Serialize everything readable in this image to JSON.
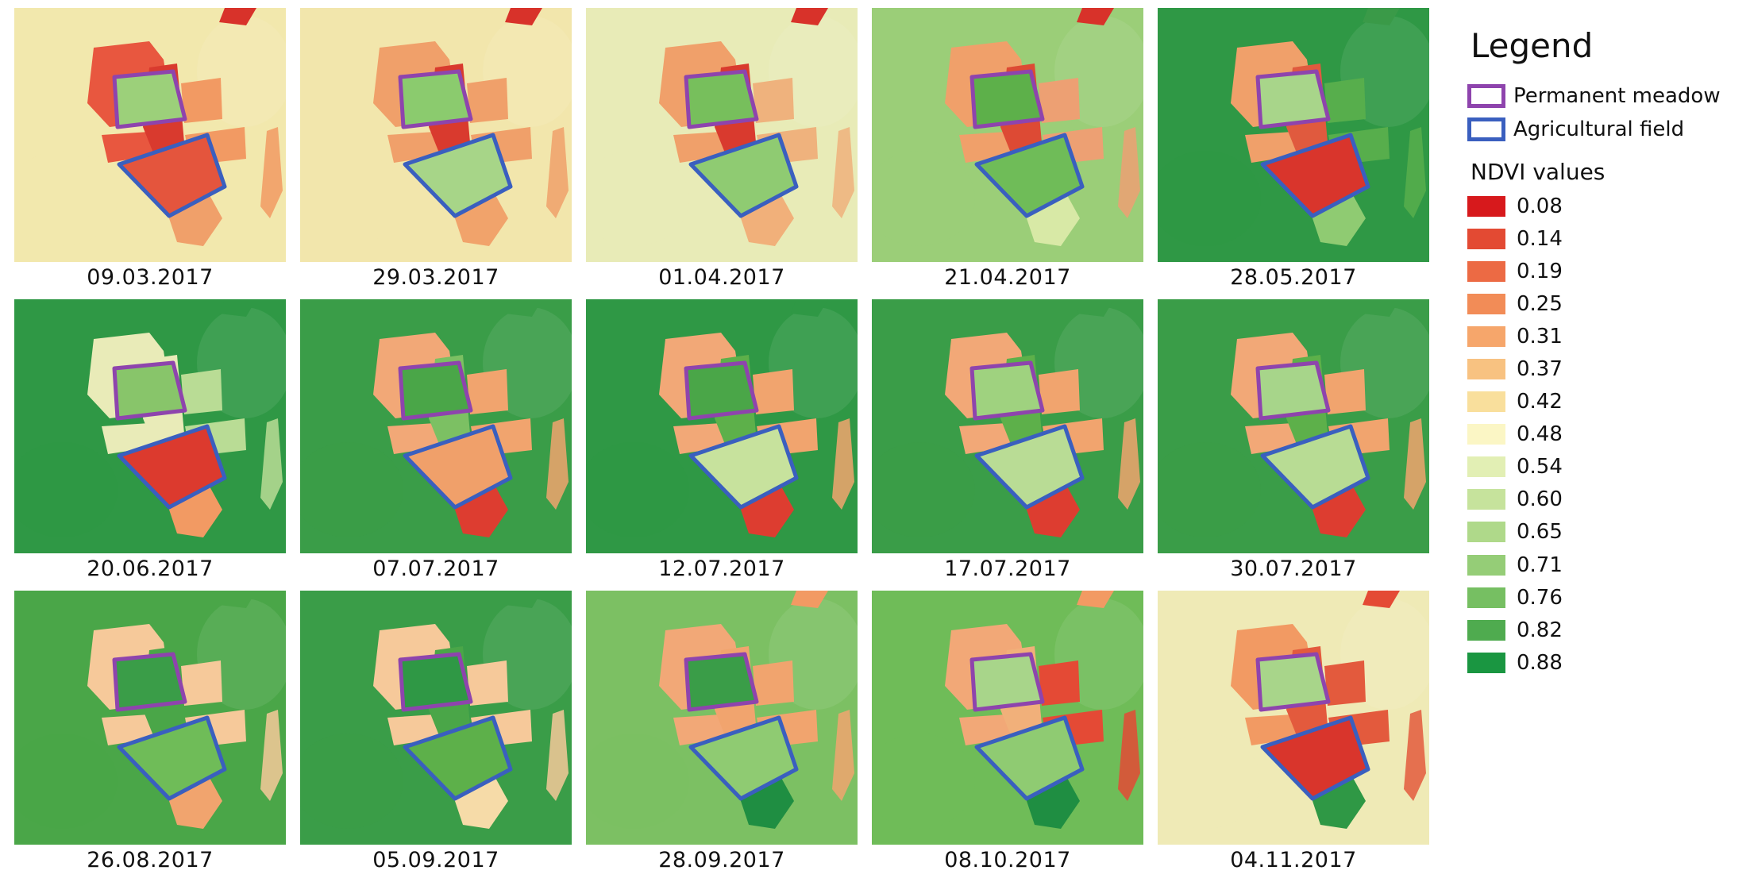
{
  "panels": [
    {
      "date": "09.03.2017",
      "bg": "#f2e8ad",
      "patches": [
        [
          "#f0cf8c"
        ],
        [
          "#f7ebb8"
        ]
      ],
      "meadow": "#9cd07a",
      "field": "#e4553d",
      "tail": "#f0a06a",
      "left": "#e8573f",
      "mid": "#d93a2e",
      "right": "#f29a63",
      "corner": "#d8322a"
    },
    {
      "date": "29.03.2017",
      "bg": "#f2e6ac",
      "meadow": "#8bcb6e",
      "field": "#a7d588",
      "tail": "#f1a36b",
      "left": "#f0a06a",
      "mid": "#d93a2e",
      "right": "#f0a06a",
      "corner": "#d8322a"
    },
    {
      "date": "01.04.2017",
      "bg": "#e8ebb7",
      "meadow": "#77bf5c",
      "field": "#8fcb72",
      "tail": "#f1b07a",
      "left": "#f0a06a",
      "mid": "#d93a2e",
      "right": "#efb27d",
      "corner": "#d8322a"
    },
    {
      "date": "21.04.2017",
      "bg": "#9bce78",
      "meadow": "#5db04a",
      "field": "#6fbc58",
      "tail": "#d8e9a6",
      "left": "#f0a06a",
      "mid": "#dd4a34",
      "right": "#eda073",
      "corner": "#d8322a"
    },
    {
      "date": "28.05.2017",
      "bg": "#2f9845",
      "meadow": "#a8d58a",
      "field": "#d9352c",
      "tail": "#8fcb72",
      "left": "#f0a06a",
      "mid": "#e05a3e",
      "right": "#57ae4c",
      "corner": "#3a9a48"
    },
    {
      "date": "20.06.2017",
      "bg": "#2f9845",
      "meadow": "#88c56a",
      "field": "#dc3a2e",
      "tail": "#f29a63",
      "left": "#e9ebb8",
      "mid": "#e9ebb8",
      "right": "#b9dc95",
      "corner": "#2f9845"
    },
    {
      "date": "07.07.2017",
      "bg": "#3a9d48",
      "meadow": "#4aa648",
      "field": "#f0a06a",
      "tail": "#dd3d30",
      "left": "#f2a877",
      "mid": "#7cc063",
      "right": "#f1a46e",
      "corner": "#3a9d48"
    },
    {
      "date": "12.07.2017",
      "bg": "#2f9845",
      "meadow": "#4aa648",
      "field": "#c7e29d",
      "tail": "#dd3d30",
      "left": "#f2a877",
      "mid": "#5db04a",
      "right": "#f1a46e",
      "corner": "#2f9845"
    },
    {
      "date": "17.07.2017",
      "bg": "#3a9d48",
      "meadow": "#9fd27f",
      "field": "#b9dc95",
      "tail": "#dd3d30",
      "left": "#f2a877",
      "mid": "#5db04a",
      "right": "#f1a46e",
      "corner": "#3a9d48"
    },
    {
      "date": "30.07.2017",
      "bg": "#3a9d48",
      "meadow": "#a7d58a",
      "field": "#b8dc94",
      "tail": "#dd3d30",
      "left": "#f2a877",
      "mid": "#5db04a",
      "right": "#f1a46e",
      "corner": "#3a9d48"
    },
    {
      "date": "26.08.2017",
      "bg": "#4aa648",
      "meadow": "#3a9d48",
      "field": "#6fbc58",
      "tail": "#f1a46e",
      "left": "#f6c99a",
      "mid": "#4aa648",
      "right": "#f6c99a",
      "corner": "#4aa648"
    },
    {
      "date": "05.09.2017",
      "bg": "#3a9d48",
      "meadow": "#2f9845",
      "field": "#5db04a",
      "tail": "#f6dba8",
      "left": "#f6c99a",
      "mid": "#4aa648",
      "right": "#f6c99a",
      "corner": "#3a9d48"
    },
    {
      "date": "28.09.2017",
      "bg": "#7cc063",
      "meadow": "#3a9d48",
      "field": "#8fcb72",
      "tail": "#1f8e42",
      "left": "#f2a877",
      "mid": "#f1a46e",
      "right": "#f1a46e",
      "corner": "#f29a63"
    },
    {
      "date": "08.10.2017",
      "bg": "#6fbc58",
      "meadow": "#a8d58a",
      "field": "#8fcb72",
      "tail": "#1f8e42",
      "left": "#f2a877",
      "mid": "#f1b07a",
      "right": "#e44a35",
      "corner": "#f29a63"
    },
    {
      "date": "04.11.2017",
      "bg": "#efeab6",
      "meadow": "#a8d58a",
      "field": "#d9352c",
      "tail": "#2f9845",
      "left": "#f29a63",
      "mid": "#e35a3d",
      "right": "#e35a3d",
      "corner": "#e44a35"
    }
  ],
  "legend": {
    "title": "Legend",
    "polygons": [
      {
        "label": "Permanent meadow",
        "color": "#8e44ad"
      },
      {
        "label": "Agricultural field",
        "color": "#3a5fbf"
      }
    ],
    "ndvi_title": "NDVI  values",
    "ndvi": [
      {
        "value": "0.08",
        "color": "#d7191c"
      },
      {
        "value": "0.14",
        "color": "#e34a33"
      },
      {
        "value": "0.19",
        "color": "#ec6a44"
      },
      {
        "value": "0.25",
        "color": "#f28c57"
      },
      {
        "value": "0.31",
        "color": "#f6a66b"
      },
      {
        "value": "0.37",
        "color": "#f8c281"
      },
      {
        "value": "0.42",
        "color": "#f9df9c"
      },
      {
        "value": "0.48",
        "color": "#fbf6c5"
      },
      {
        "value": "0.54",
        "color": "#e2efb4"
      },
      {
        "value": "0.60",
        "color": "#c6e39c"
      },
      {
        "value": "0.65",
        "color": "#afd98a"
      },
      {
        "value": "0.71",
        "color": "#95cd77"
      },
      {
        "value": "0.76",
        "color": "#76bf62"
      },
      {
        "value": "0.82",
        "color": "#4fab4f"
      },
      {
        "value": "0.88",
        "color": "#1a9641"
      }
    ]
  }
}
